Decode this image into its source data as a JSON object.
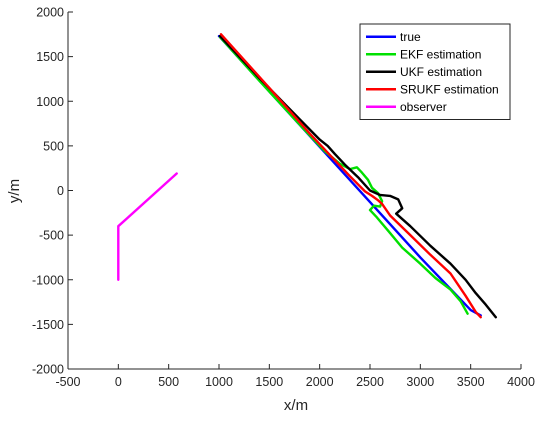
{
  "chart_data": {
    "type": "line",
    "title": "",
    "xlabel": "x/m",
    "ylabel": "y/m",
    "xlim": [
      -500,
      4000
    ],
    "ylim": [
      -2000,
      2000
    ],
    "xticks": [
      -500,
      0,
      500,
      1000,
      1500,
      2000,
      2500,
      3000,
      3500,
      4000
    ],
    "yticks": [
      -2000,
      -1500,
      -1000,
      -500,
      0,
      500,
      1000,
      1500,
      2000
    ],
    "xtick_labels": [
      "-500",
      "0",
      "500",
      "1000",
      "1500",
      "2000",
      "2500",
      "3000",
      "3500",
      "4000"
    ],
    "ytick_labels": [
      "-2000",
      "-1500",
      "-1000",
      "-500",
      "0",
      "500",
      "1000",
      "1500",
      "2000"
    ],
    "grid": false,
    "legend_position": "top-right",
    "series": [
      {
        "name": "true",
        "color": "#0000ff",
        "points": [
          [
            1000,
            1730
          ],
          [
            1500,
            1110
          ],
          [
            2000,
            490
          ],
          [
            2500,
            -130
          ],
          [
            3000,
            -750
          ],
          [
            3500,
            -1340
          ],
          [
            3600,
            -1400
          ]
        ]
      },
      {
        "name": "EKF estimation",
        "color": "#00e000",
        "points": [
          [
            1010,
            1720
          ],
          [
            1400,
            1230
          ],
          [
            1800,
            740
          ],
          [
            2050,
            440
          ],
          [
            2200,
            300
          ],
          [
            2300,
            240
          ],
          [
            2370,
            260
          ],
          [
            2420,
            200
          ],
          [
            2480,
            120
          ],
          [
            2520,
            30
          ],
          [
            2580,
            -30
          ],
          [
            2620,
            -120
          ],
          [
            2600,
            -180
          ],
          [
            2540,
            -170
          ],
          [
            2500,
            -220
          ],
          [
            2560,
            -290
          ],
          [
            2680,
            -450
          ],
          [
            2820,
            -640
          ],
          [
            3000,
            -820
          ],
          [
            3150,
            -980
          ],
          [
            3300,
            -1110
          ],
          [
            3400,
            -1240
          ],
          [
            3470,
            -1380
          ]
        ]
      },
      {
        "name": "UKF estimation",
        "color": "#000000",
        "points": [
          [
            1010,
            1730
          ],
          [
            1400,
            1260
          ],
          [
            1800,
            800
          ],
          [
            2000,
            570
          ],
          [
            2080,
            500
          ],
          [
            2150,
            410
          ],
          [
            2250,
            290
          ],
          [
            2380,
            150
          ],
          [
            2500,
            0
          ],
          [
            2600,
            -50
          ],
          [
            2700,
            -60
          ],
          [
            2780,
            -100
          ],
          [
            2820,
            -200
          ],
          [
            2760,
            -260
          ],
          [
            2900,
            -400
          ],
          [
            3100,
            -620
          ],
          [
            3300,
            -820
          ],
          [
            3450,
            -1000
          ],
          [
            3550,
            -1150
          ],
          [
            3650,
            -1280
          ],
          [
            3750,
            -1420
          ]
        ]
      },
      {
        "name": "SRUKF estimation",
        "color": "#ff0000",
        "points": [
          [
            1020,
            1750
          ],
          [
            1500,
            1150
          ],
          [
            1900,
            640
          ],
          [
            2100,
            400
          ],
          [
            2300,
            160
          ],
          [
            2450,
            -10
          ],
          [
            2520,
            -60
          ],
          [
            2580,
            -110
          ],
          [
            2620,
            -150
          ],
          [
            2700,
            -280
          ],
          [
            2900,
            -500
          ],
          [
            3100,
            -720
          ],
          [
            3300,
            -930
          ],
          [
            3450,
            -1180
          ],
          [
            3550,
            -1360
          ],
          [
            3600,
            -1420
          ]
        ]
      },
      {
        "name": "observer",
        "color": "#ff00ff",
        "points": [
          [
            0,
            -1000
          ],
          [
            0,
            -400
          ],
          [
            580,
            190
          ]
        ]
      }
    ]
  }
}
